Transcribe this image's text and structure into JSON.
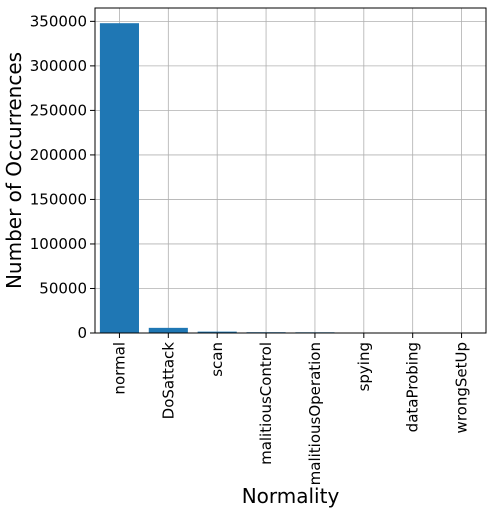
{
  "chart_data": {
    "type": "bar",
    "title": "",
    "xlabel": "Normality",
    "ylabel": "Number of Occurrences",
    "categories": [
      "normal",
      "DoSattack",
      "scan",
      "malitiousControl",
      "malitiousOperation",
      "spying",
      "dataProbing",
      "wrongSetUp"
    ],
    "values": [
      347935,
      5780,
      1547,
      889,
      805,
      532,
      342,
      122
    ],
    "ylim": [
      0,
      365000
    ],
    "yticks": [
      0,
      50000,
      100000,
      150000,
      200000,
      250000,
      300000,
      350000
    ],
    "grid": true,
    "bar_color": "#1f77b4",
    "grid_color": "#b0b0b0"
  }
}
